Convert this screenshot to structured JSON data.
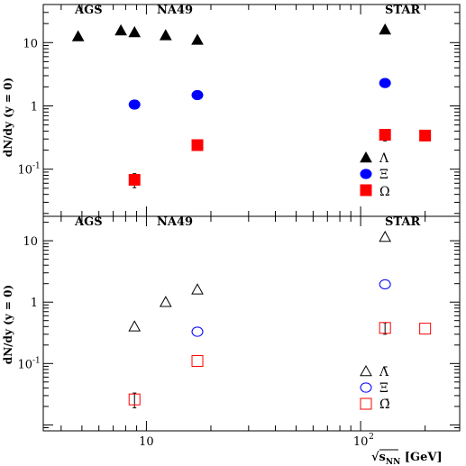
{
  "chart_data": [
    {
      "type": "scatter",
      "panel": "top",
      "ylabel": "dN/dy (y = 0)",
      "xscale": "log",
      "yscale": "log",
      "xlim": [
        3.3,
        290
      ],
      "ylim": [
        0.018,
        40
      ],
      "y_ticks": [
        {
          "v": 10,
          "label": "10"
        },
        {
          "v": 1,
          "label": "1"
        },
        {
          "v": 0.1,
          "label": "10",
          "exp": "-1"
        }
      ],
      "experiments": [
        "AGS",
        "NA49",
        "STAR"
      ],
      "legend_position": "bottom-right",
      "series": [
        {
          "name": "Λ",
          "marker": "triangle",
          "filled": true,
          "color": "#000000",
          "points": [
            {
              "x": 4.8,
              "y": 12.5
            },
            {
              "x": 7.6,
              "y": 15.5
            },
            {
              "x": 8.8,
              "y": 14.5
            },
            {
              "x": 12.3,
              "y": 13.0
            },
            {
              "x": 17.3,
              "y": 11.0
            },
            {
              "x": 130,
              "y": 16.0
            }
          ]
        },
        {
          "name": "Ξ",
          "marker": "circle",
          "filled": true,
          "color": "#0000ff",
          "points": [
            {
              "x": 8.8,
              "y": 1.05
            },
            {
              "x": 17.3,
              "y": 1.48
            },
            {
              "x": 130,
              "y": 2.3
            }
          ]
        },
        {
          "name": "Ω",
          "marker": "square",
          "filled": true,
          "color": "#ff0000",
          "points": [
            {
              "x": 8.8,
              "y": 0.068,
              "err": 0.017
            },
            {
              "x": 17.3,
              "y": 0.24
            },
            {
              "x": 130,
              "y": 0.35,
              "err": 0.07
            },
            {
              "x": 200,
              "y": 0.34
            }
          ]
        }
      ]
    },
    {
      "type": "scatter",
      "panel": "bottom",
      "ylabel": "dN/dy (y = 0)",
      "xlabel": "√s_NN [GeV]",
      "xscale": "log",
      "yscale": "log",
      "xlim": [
        3.3,
        290
      ],
      "ylim": [
        0.008,
        25
      ],
      "x_ticks": [
        {
          "v": 10,
          "label": "10"
        },
        {
          "v": 100,
          "label": "10",
          "exp": "2"
        }
      ],
      "y_ticks": [
        {
          "v": 10,
          "label": "10"
        },
        {
          "v": 1,
          "label": "1"
        },
        {
          "v": 0.1,
          "label": "10",
          "exp": "-1"
        }
      ],
      "experiments": [
        "AGS",
        "NA49",
        "STAR"
      ],
      "legend_position": "bottom-right",
      "series": [
        {
          "name": "Λ̄",
          "marker": "triangle",
          "filled": false,
          "color": "#000000",
          "points": [
            {
              "x": 8.8,
              "y": 0.4
            },
            {
              "x": 12.3,
              "y": 1.0
            },
            {
              "x": 17.3,
              "y": 1.6
            },
            {
              "x": 130,
              "y": 11.5
            }
          ]
        },
        {
          "name": "Ξ̄",
          "marker": "circle",
          "filled": false,
          "color": "#0000ff",
          "points": [
            {
              "x": 17.3,
              "y": 0.33
            },
            {
              "x": 130,
              "y": 1.95
            }
          ]
        },
        {
          "name": "Ω̄",
          "marker": "square",
          "filled": false,
          "color": "#ff0000",
          "points": [
            {
              "x": 8.8,
              "y": 0.026,
              "err": 0.007
            },
            {
              "x": 17.3,
              "y": 0.11
            },
            {
              "x": 130,
              "y": 0.38,
              "err": 0.08
            },
            {
              "x": 200,
              "y": 0.37
            }
          ]
        }
      ]
    }
  ]
}
